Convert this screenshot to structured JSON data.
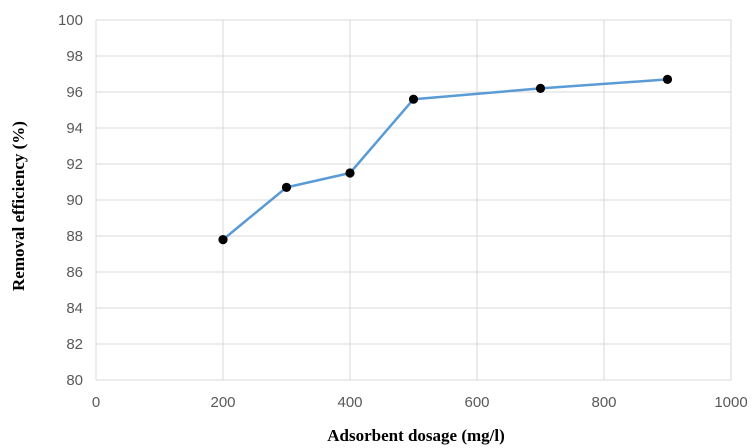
{
  "chart_data": {
    "type": "line",
    "title": "",
    "xlabel": "Adsorbent dosage (mg/l)",
    "ylabel": "Removal efficiency (%)",
    "xlim": [
      0,
      1000
    ],
    "ylim": [
      80,
      100
    ],
    "xticks": [
      0,
      200,
      400,
      600,
      800,
      1000
    ],
    "yticks": [
      80,
      82,
      84,
      86,
      88,
      90,
      92,
      94,
      96,
      98,
      100
    ],
    "grid": true,
    "legend": "none",
    "series": [
      {
        "x": [
          200,
          300,
          400,
          500,
          700,
          900
        ],
        "y": [
          87.8,
          90.7,
          91.5,
          95.6,
          96.2,
          96.7
        ]
      }
    ],
    "colors": {
      "line": "#5b9bd5",
      "marker": "#000000",
      "grid": "#d9d9d9",
      "tick_text": "#595959",
      "axis_title": "#000000"
    }
  }
}
